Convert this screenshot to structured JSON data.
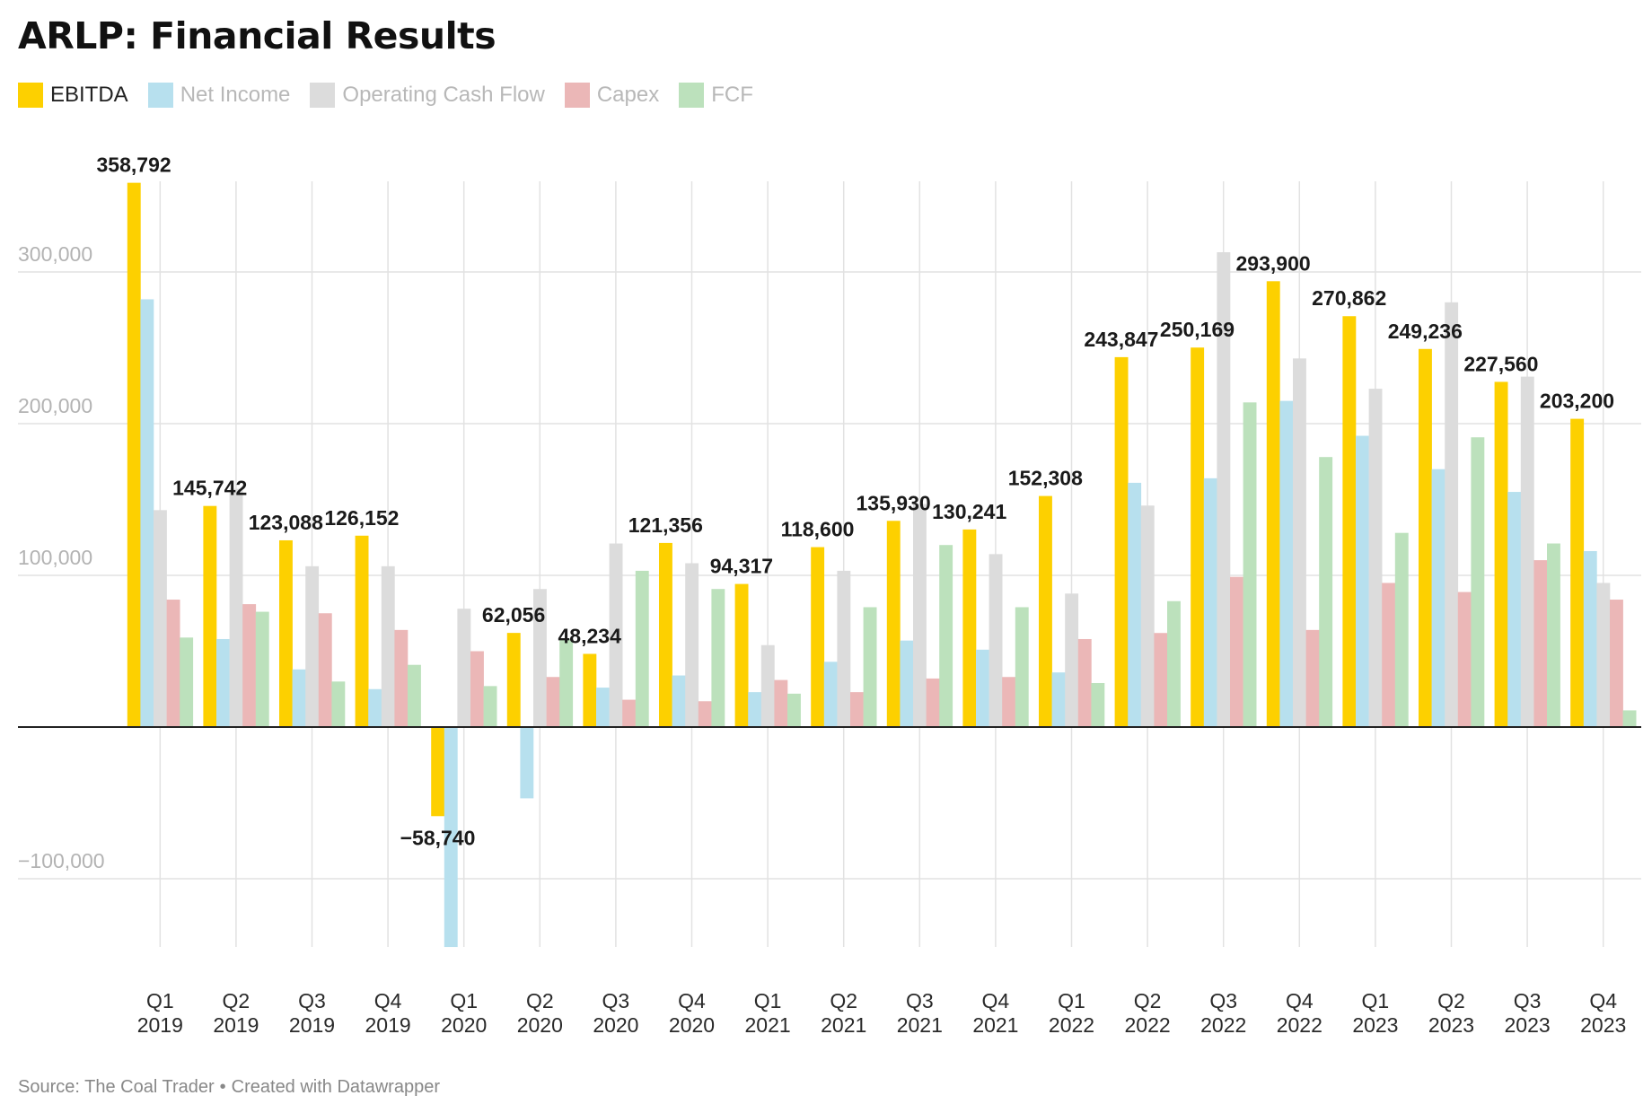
{
  "title": "ARLP: Financial Results",
  "source": {
    "text": "Source: The Coal Trader",
    "separator": "•",
    "credit": "Created with Datawrapper"
  },
  "chart_data": {
    "type": "bar",
    "title": "ARLP: Financial Results",
    "xlabel": "",
    "ylabel": "",
    "ylim": [
      -145000,
      360000
    ],
    "yticks": [
      -100000,
      100000,
      200000,
      300000
    ],
    "ytick_labels": [
      "−100,000",
      "100,000",
      "200,000",
      "300,000"
    ],
    "grid": true,
    "legend": "top-left",
    "categories": [
      [
        "Q1",
        "2019"
      ],
      [
        "Q2",
        "2019"
      ],
      [
        "Q3",
        "2019"
      ],
      [
        "Q4",
        "2019"
      ],
      [
        "Q1",
        "2020"
      ],
      [
        "Q2",
        "2020"
      ],
      [
        "Q3",
        "2020"
      ],
      [
        "Q4",
        "2020"
      ],
      [
        "Q1",
        "2021"
      ],
      [
        "Q2",
        "2021"
      ],
      [
        "Q3",
        "2021"
      ],
      [
        "Q4",
        "2021"
      ],
      [
        "Q1",
        "2022"
      ],
      [
        "Q2",
        "2022"
      ],
      [
        "Q3",
        "2022"
      ],
      [
        "Q4",
        "2022"
      ],
      [
        "Q1",
        "2023"
      ],
      [
        "Q2",
        "2023"
      ],
      [
        "Q3",
        "2023"
      ],
      [
        "Q4",
        "2023"
      ]
    ],
    "series": [
      {
        "name": "EBITDA",
        "color": "#FDD000",
        "labeled": true,
        "values": [
          358792,
          145742,
          123088,
          126152,
          -58740,
          62056,
          48234,
          121356,
          94317,
          118600,
          135930,
          130241,
          152308,
          243847,
          250169,
          293900,
          270862,
          249236,
          227560,
          203200
        ],
        "data_labels": [
          "358,792",
          "145,742",
          "123,088",
          "126,152",
          "−58,740",
          "62,056",
          "48,234",
          "121,356",
          "94,317",
          "118,600",
          "135,930",
          "130,241",
          "152,308",
          "243,847",
          "250,169",
          "293,900",
          "270,862",
          "249,236",
          "227,560",
          "203,200"
        ]
      },
      {
        "name": "Net Income",
        "color": "#B7E0EE",
        "labeled": false,
        "values": [
          282000,
          58000,
          38000,
          25000,
          -145000,
          -47000,
          26000,
          34000,
          23000,
          43000,
          57000,
          51000,
          36000,
          161000,
          164000,
          215000,
          192000,
          170000,
          155000,
          116000
        ]
      },
      {
        "name": "Operating Cash Flow",
        "color": "#DCDCDC",
        "labeled": false,
        "values": [
          143000,
          157000,
          106000,
          106000,
          78000,
          91000,
          121000,
          108000,
          54000,
          103000,
          147000,
          114000,
          88000,
          146000,
          313000,
          243000,
          223000,
          280000,
          231000,
          95000
        ]
      },
      {
        "name": "Capex",
        "color": "#EBB7B7",
        "labeled": false,
        "values": [
          84000,
          81000,
          75000,
          64000,
          50000,
          33000,
          18000,
          17000,
          31000,
          23000,
          32000,
          33000,
          58000,
          62000,
          99000,
          64000,
          95000,
          89000,
          110000,
          84000
        ]
      },
      {
        "name": "FCF",
        "color": "#BCE1BC",
        "labeled": false,
        "values": [
          59000,
          76000,
          30000,
          41000,
          27000,
          58000,
          103000,
          91000,
          22000,
          79000,
          120000,
          79000,
          29000,
          83000,
          214000,
          178000,
          128000,
          191000,
          121000,
          11000
        ]
      }
    ]
  }
}
